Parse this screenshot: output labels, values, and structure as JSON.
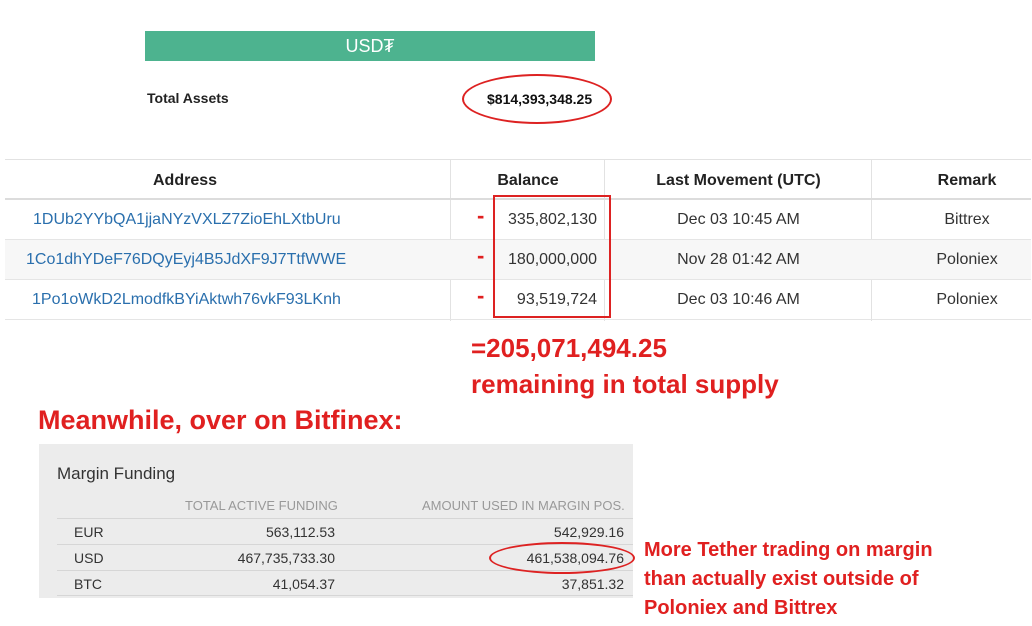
{
  "header": {
    "banner": "USD₮"
  },
  "totals": {
    "label": "Total Assets",
    "value": "$814,393,348.25"
  },
  "table": {
    "columns": [
      "Address",
      "Balance",
      "Last Movement (UTC)",
      "Remark"
    ],
    "rows": [
      {
        "address": "1DUb2YYbQA1jjaNYzVXLZ7ZioEhLXtbUru",
        "balance": "335,802,130",
        "last_movement": "Dec 03 10:45 AM",
        "remark": "Bittrex"
      },
      {
        "address": "1Co1dhYDeF76DQyEyj4B5JdXF9J7TtfWWE",
        "balance": "180,000,000",
        "last_movement": "Nov 28 01:42 AM",
        "remark": "Poloniex"
      },
      {
        "address": "1Po1oWkD2LmodfkBYiAktwh76vkF93LKnh",
        "balance": "93,519,724",
        "last_movement": "Dec 03 10:46 AM",
        "remark": "Poloniex"
      }
    ],
    "minus_sign": "-"
  },
  "annotations": {
    "sum": "=205,071,494.25",
    "remaining": "remaining in total supply",
    "meanwhile": "Meanwhile, over on Bitfinex:",
    "margin_note": [
      "More Tether trading on margin",
      "than actually exist outside of",
      "Poloniex and Bittrex"
    ],
    "highlight_color": "#e02020"
  },
  "margin_funding": {
    "title": "Margin Funding",
    "columns": [
      "TOTAL ACTIVE FUNDING",
      "AMOUNT USED IN MARGIN POS."
    ],
    "rows": [
      {
        "currency": "EUR",
        "total": "563,112.53",
        "used": "542,929.16"
      },
      {
        "currency": "USD",
        "total": "467,735,733.30",
        "used": "461,538,094.76"
      },
      {
        "currency": "BTC",
        "total": "41,054.37",
        "used": "37,851.32"
      }
    ]
  },
  "colors": {
    "banner": "#4db38f",
    "link": "#2a6fad",
    "annotation": "#e02020"
  }
}
